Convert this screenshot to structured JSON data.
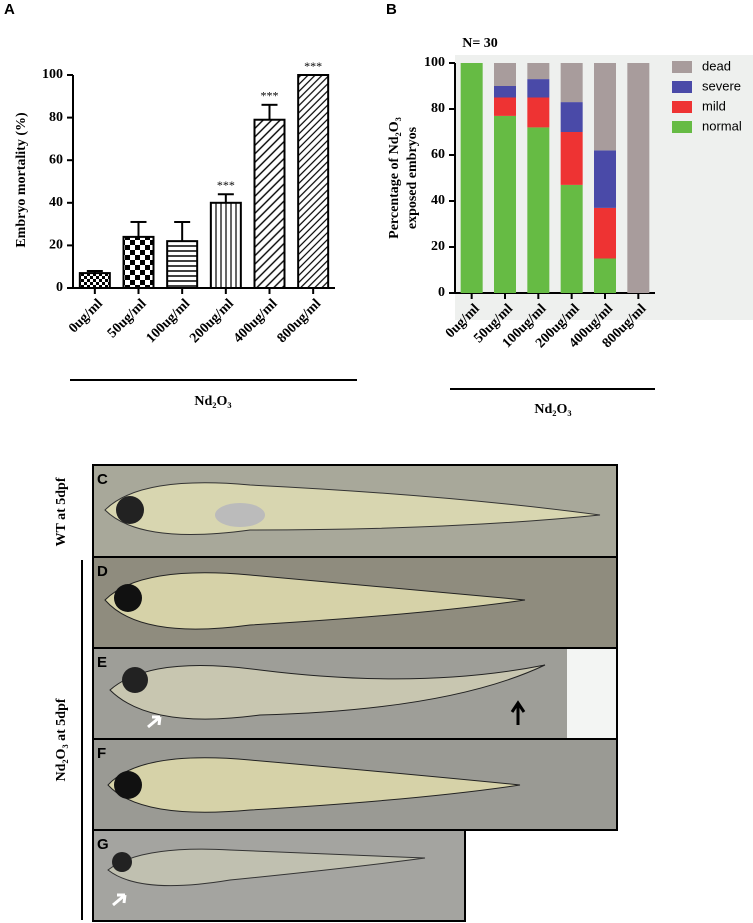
{
  "panels": {
    "a": "A",
    "b": "B"
  },
  "chart_data": [
    {
      "type": "bar",
      "ylabel": "Embryo mortality (%)",
      "xlabel": "Nd₂O₃",
      "categories": [
        "0ug/ml",
        "50ug/ml",
        "100ug/ml",
        "200ug/ml",
        "400ug/ml",
        "800ug/ml"
      ],
      "values": [
        7,
        24,
        22,
        40,
        79,
        100
      ],
      "errors": [
        1,
        7,
        9,
        4,
        7,
        0
      ],
      "significance": [
        null,
        null,
        null,
        "***",
        "***",
        "***"
      ],
      "color": "#000000",
      "ylim": [
        0,
        100
      ],
      "yticks": [
        0,
        20,
        40,
        60,
        80,
        100
      ]
    },
    {
      "type": "stacked_bar",
      "title": "N= 30",
      "ylabel": [
        "Percentage of Nd₂O₃",
        "exposed embryos"
      ],
      "xlabel": "Nd₂O₃",
      "categories": [
        "0ug/ml",
        "50ug/ml",
        "100ug/ml",
        "200ug/ml",
        "400ug/ml",
        "800ug/ml"
      ],
      "series": [
        {
          "name": "normal",
          "color": "#66bb44",
          "values": [
            100,
            77,
            72,
            47,
            15,
            0
          ]
        },
        {
          "name": "mild",
          "color": "#ee3333",
          "values": [
            0,
            8,
            13,
            23,
            22,
            0
          ]
        },
        {
          "name": "severe",
          "color": "#4a4aa8",
          "values": [
            0,
            5,
            8,
            13,
            25,
            0
          ]
        },
        {
          "name": "dead",
          "color": "#a89c9c",
          "values": [
            0,
            10,
            7,
            17,
            38,
            100
          ]
        }
      ],
      "ylim": [
        0,
        100
      ],
      "yticks": [
        0,
        20,
        40,
        60,
        80,
        100
      ],
      "legend": "right"
    }
  ],
  "images": {
    "labels": [
      "C",
      "D",
      "E",
      "F",
      "G"
    ],
    "wt_label": "WT at 5dpf",
    "nd_label": "Nd₂O₃ at 5dpf"
  }
}
